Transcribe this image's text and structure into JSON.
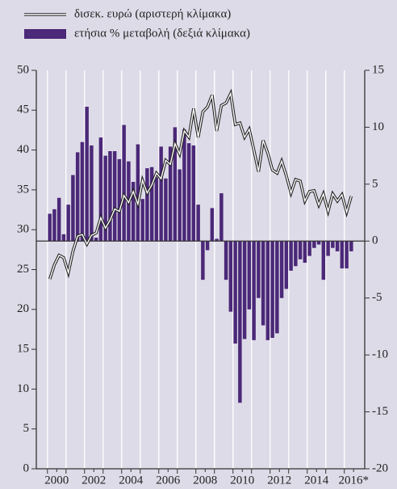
{
  "chart_data": {
    "type": "combo",
    "x": [
      2000.125,
      2000.375,
      2000.625,
      2000.875,
      2001.125,
      2001.375,
      2001.625,
      2001.875,
      2002.125,
      2002.375,
      2002.625,
      2002.875,
      2003.125,
      2003.375,
      2003.625,
      2003.875,
      2004.125,
      2004.375,
      2004.625,
      2004.875,
      2005.125,
      2005.375,
      2005.625,
      2005.875,
      2006.125,
      2006.375,
      2006.625,
      2006.875,
      2007.125,
      2007.375,
      2007.625,
      2007.875,
      2008.125,
      2008.375,
      2008.625,
      2008.875,
      2009.125,
      2009.375,
      2009.625,
      2009.875,
      2010.125,
      2010.375,
      2010.625,
      2010.875,
      2011.125,
      2011.375,
      2011.625,
      2011.875,
      2012.125,
      2012.375,
      2012.625,
      2012.875,
      2013.125,
      2013.375,
      2013.625,
      2013.875,
      2014.125,
      2014.375,
      2014.625,
      2014.875,
      2015.125,
      2015.375,
      2015.625,
      2015.875,
      2016.125,
      2016.375
    ],
    "series": [
      {
        "name": "δισεκ. ευρώ (αριστερή κλίμακα)",
        "type": "line",
        "axis": "y",
        "color": "#ffffff",
        "values": [
          23.8,
          25.6,
          26.8,
          26.5,
          24.6,
          27.3,
          29.2,
          29.4,
          28.2,
          29.3,
          29.6,
          31.5,
          30.2,
          31.2,
          32.6,
          32.3,
          34.3,
          33.4,
          34.8,
          33.2,
          36.2,
          34.6,
          35.6,
          37.1,
          36.4,
          38.7,
          38.2,
          40.8,
          39.5,
          42.4,
          41.6,
          45.2,
          41.6,
          44.8,
          45.4,
          46.9,
          42.4,
          45.6,
          45.9,
          47.1,
          43.2,
          43.4,
          41.6,
          42.6,
          40.0,
          37.3,
          41.2,
          39.6,
          37.5,
          37.1,
          38.6,
          36.8,
          34.6,
          36.3,
          36.1,
          33.6,
          34.8,
          34.9,
          33.1,
          34.5,
          32.3,
          34.5,
          33.6,
          34.4,
          32.2,
          34.2
        ]
      },
      {
        "name": "ετήσια % μεταβολή (δεξιά κλίμακα)",
        "type": "bar",
        "axis": "y2",
        "color": "#4b2878",
        "values": [
          2.4,
          2.8,
          3.8,
          0.6,
          3.2,
          5.8,
          7.8,
          8.7,
          11.8,
          8.4,
          0.3,
          9.1,
          7.5,
          7.9,
          7.9,
          7.2,
          10.2,
          7.0,
          5.2,
          8.5,
          3.7,
          6.4,
          6.5,
          5.6,
          8.3,
          5.5,
          8.3,
          10.0,
          6.3,
          9.8,
          8.6,
          8.4,
          3.2,
          -3.4,
          -0.8,
          2.9,
          0.2,
          4.2,
          -3.4,
          -6.2,
          -9.0,
          -14.2,
          -8.6,
          -6.0,
          -8.7,
          -5.0,
          -7.4,
          -8.7,
          -8.5,
          -8.1,
          -5.0,
          -4.2,
          -2.6,
          -2.2,
          -1.6,
          -1.9,
          -1.3,
          -0.6,
          -0.3,
          -3.4,
          -1.3,
          -0.6,
          -0.9,
          -2.4,
          -2.4,
          -0.9
        ]
      }
    ],
    "xlim": [
      1999.4,
      2017.1
    ],
    "xticks": [
      {
        "value": 2000.5,
        "label": "2000"
      },
      {
        "value": 2002.5,
        "label": "2002"
      },
      {
        "value": 2004.5,
        "label": "2004"
      },
      {
        "value": 2006.5,
        "label": "2006"
      },
      {
        "value": 2008.5,
        "label": "2008"
      },
      {
        "value": 2010.5,
        "label": "2010"
      },
      {
        "value": 2012.5,
        "label": "2012"
      },
      {
        "value": 2014.5,
        "label": "2014"
      },
      {
        "value": 2016.5,
        "label": "2016*"
      }
    ],
    "xgrid": [
      2000,
      2001,
      2002,
      2003,
      2004,
      2005,
      2006,
      2007,
      2008,
      2009,
      2010,
      2011,
      2012,
      2013,
      2014,
      2015,
      2016
    ],
    "ylim": [
      0,
      50
    ],
    "yticks": [
      0,
      5,
      10,
      15,
      20,
      25,
      30,
      35,
      40,
      45,
      50
    ],
    "y2lim": [
      -20,
      15
    ],
    "y2ticks": [
      -20,
      -15,
      -10,
      -5,
      0,
      5,
      10,
      15
    ],
    "legend": "top-left"
  }
}
